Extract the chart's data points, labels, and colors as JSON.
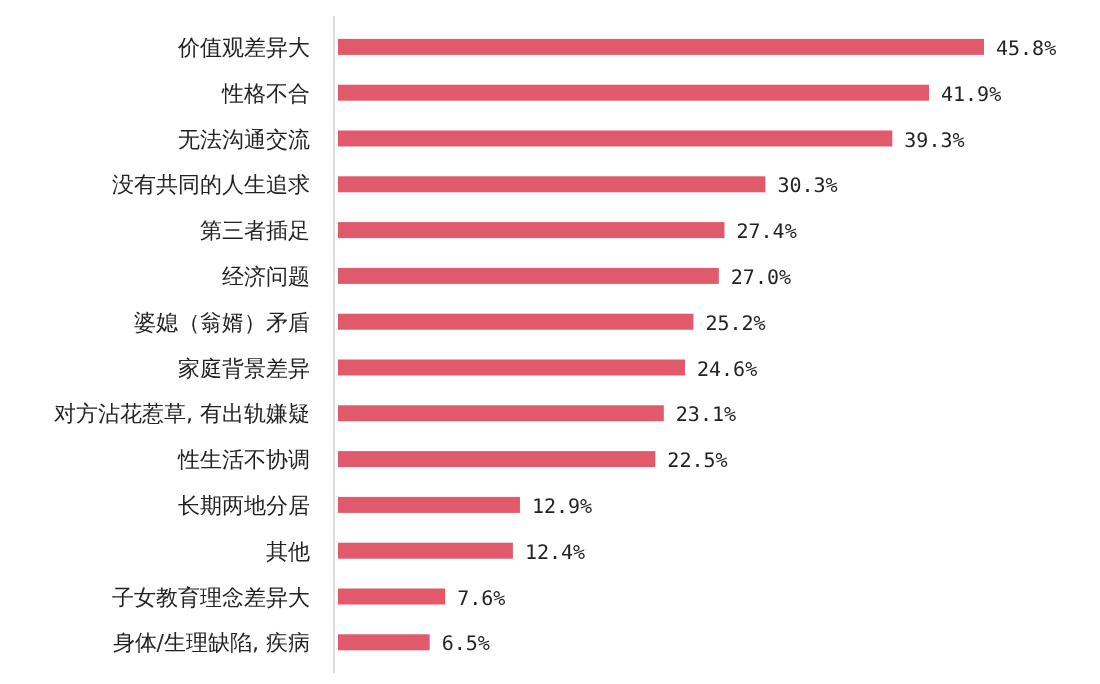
{
  "chart_data": {
    "type": "bar",
    "orientation": "horizontal",
    "color": "#e05a6b",
    "categories": [
      "价值观差异大",
      "性格不合",
      "无法沟通交流",
      "没有共同的人生追求",
      "第三者插足",
      "经济问题",
      "婆媳（翁婿）矛盾",
      "家庭背景差异",
      "对方沾花惹草, 有出轨嫌疑",
      "性生活不协调",
      "长期两地分居",
      "其他",
      "子女教育理念差异大",
      "身体/生理缺陷, 疾病"
    ],
    "values": [
      45.8,
      41.9,
      39.3,
      30.3,
      27.4,
      27.0,
      25.2,
      24.6,
      23.1,
      22.5,
      12.9,
      12.4,
      7.6,
      6.5
    ],
    "value_labels": [
      "45.8%",
      "41.9%",
      "39.3%",
      "30.3%",
      "27.4%",
      "27.0%",
      "25.2%",
      "24.6%",
      "23.1%",
      "22.5%",
      "12.9%",
      "12.4%",
      "7.6%",
      "6.5%"
    ]
  }
}
